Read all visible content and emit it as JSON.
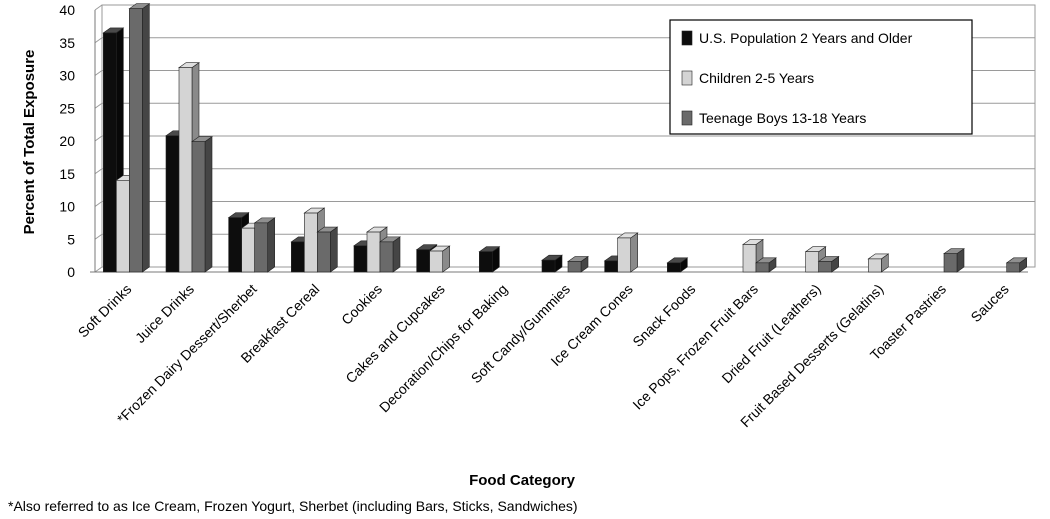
{
  "chart_data": {
    "type": "bar",
    "title": "",
    "xlabel": "Food Category",
    "ylabel": "Percent of Total Exposure",
    "ylim": [
      0,
      40
    ],
    "yticks": [
      0,
      5,
      10,
      15,
      20,
      25,
      30,
      35,
      40
    ],
    "grid": true,
    "legend_position": "top-right",
    "categories": [
      "Soft Drinks",
      "Juice Drinks",
      "*Frozen Dairy Dessert/Sherbet",
      "Breakfast Cereal",
      "Cookies",
      "Cakes and Cupcakes",
      "Decoration/Chips for Baking",
      "Soft Candy/Gummies",
      "Ice Cream Cones",
      "Snack Foods",
      "Ice Pops, Frozen Fruit Bars",
      "Dried Fruit (Leathers)",
      "Fruit Based Desserts (Gelatins)",
      "Toaster Pastries",
      "Sauces"
    ],
    "series": [
      {
        "name": "U.S. Population 2 Years and Older",
        "color": "#0d0d0d",
        "values": [
          36.5,
          20.8,
          8.3,
          4.6,
          4.0,
          3.4,
          3.1,
          1.8,
          1.7,
          1.4,
          0,
          0,
          0,
          0,
          0
        ]
      },
      {
        "name": "Children 2-5 Years",
        "color": "#d4d4d4",
        "values": [
          14.0,
          31.2,
          6.7,
          9.0,
          6.1,
          3.2,
          0,
          0,
          5.2,
          0,
          4.2,
          3.1,
          2.0,
          0,
          0
        ]
      },
      {
        "name": "Teenage Boys 13-18 Years",
        "color": "#6a6a6a",
        "values": [
          40.2,
          19.9,
          7.5,
          6.1,
          4.6,
          0,
          0,
          1.6,
          0,
          0,
          1.4,
          1.6,
          0,
          2.8,
          1.4
        ]
      }
    ]
  },
  "footnote": "*Also referred to as Ice Cream, Frozen Yogurt, Sherbet (including Bars, Sticks, Sandwiches)"
}
